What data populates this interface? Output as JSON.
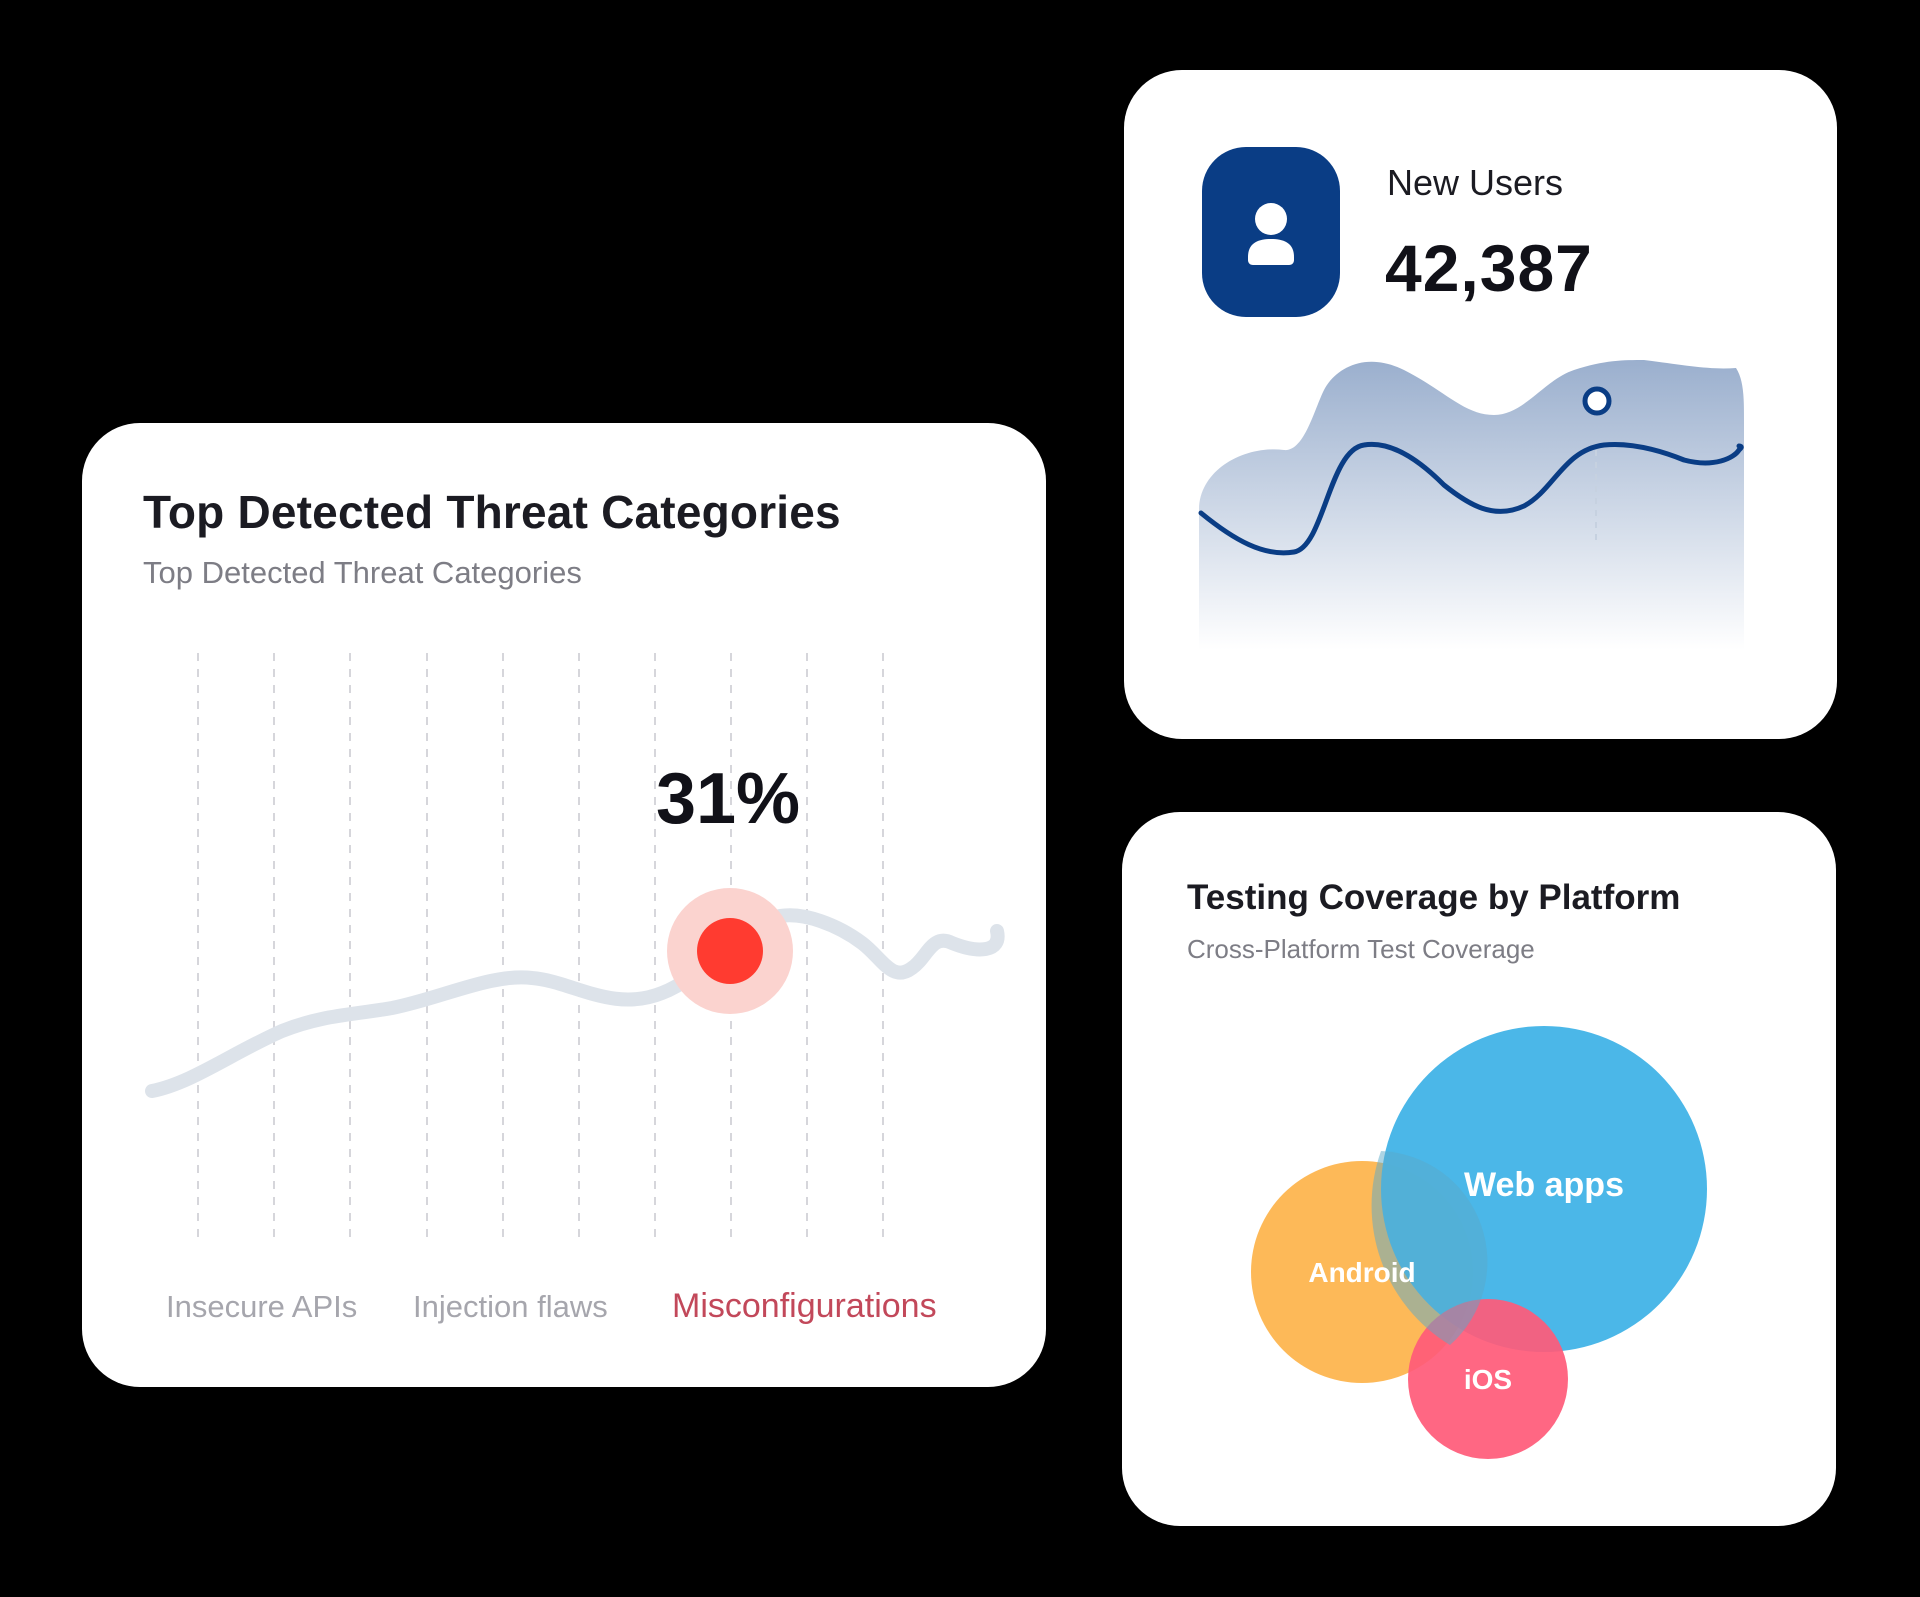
{
  "threats": {
    "title": "Top Detected Threat Categories",
    "subtitle": "Top Detected Threat Categories",
    "highlight_value": "31%",
    "categories": [
      "Insecure APIs",
      "Injection flaws",
      "Misconfigurations"
    ],
    "active_category": "Misconfigurations",
    "colors": {
      "line": "#dde2e8",
      "highlight": "#ff3b30",
      "active_label": "#c2485a"
    }
  },
  "users": {
    "label": "New Users",
    "value": "42,387",
    "icon": "user-icon",
    "colors": {
      "accent": "#0a3d85"
    }
  },
  "coverage": {
    "title": "Testing Coverage by Platform",
    "subtitle": "Cross-Platform Test Coverage",
    "chart_data": {
      "type": "bubble",
      "bubbles": [
        {
          "label": "Web apps",
          "color": "#47b6e8"
        },
        {
          "label": "Android",
          "color": "#fdb54f"
        },
        {
          "label": "iOS",
          "color": "#ff5a78"
        }
      ]
    }
  }
}
